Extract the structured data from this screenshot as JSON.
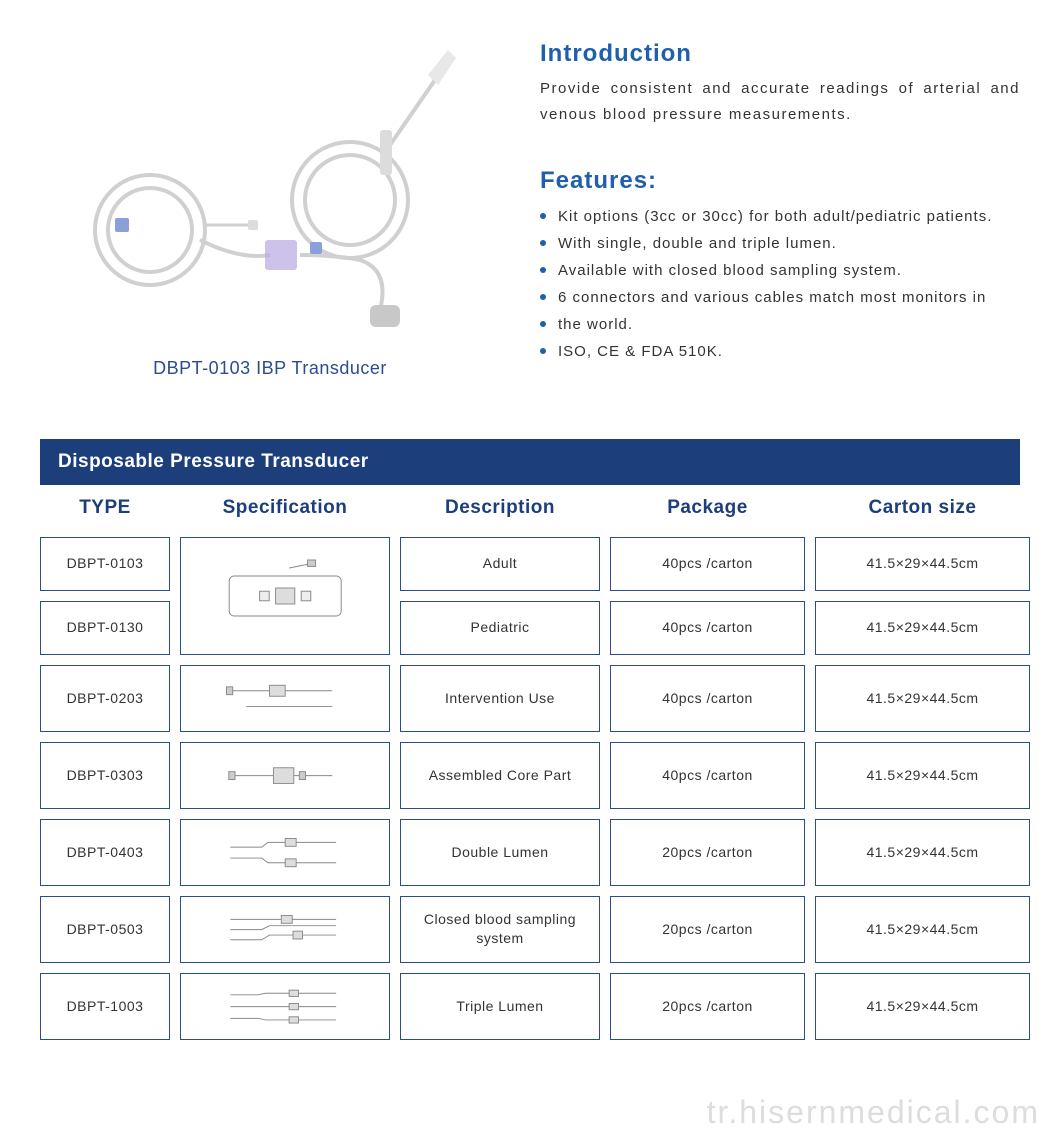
{
  "colors": {
    "brand_blue": "#1f5fab",
    "navy": "#1c3e7a",
    "border": "#2a4d8f",
    "text": "#333333",
    "bullet": "#1f5fab",
    "white": "#ffffff",
    "watermark": "#dddddd",
    "svg_stroke": "#888888"
  },
  "product": {
    "caption": "DBPT-0103 IBP Transducer"
  },
  "intro": {
    "heading": "Introduction",
    "text": "Provide consistent and accurate readings of arterial and venous blood pressure measurements."
  },
  "features": {
    "heading": "Features:",
    "items": [
      "Kit options (3cc or 30cc) for both adult/pediatric patients.",
      "With single, double and triple lumen.",
      "Available with closed blood sampling system.",
      "6 connectors and various cables match most monitors in",
      "the world.",
      "ISO, CE & FDA 510K."
    ]
  },
  "table": {
    "title": "Disposable Pressure Transducer",
    "headers": [
      "TYPE",
      "Specification",
      "Description",
      "Package",
      "Carton  size"
    ],
    "rows": [
      {
        "type": "DBPT-0103",
        "spec_rowspan": 2,
        "description": "Adult",
        "package": "40pcs /carton",
        "carton": "41.5×29×44.5cm"
      },
      {
        "type": "DBPT-0130",
        "description": "Pediatric",
        "package": "40pcs /carton",
        "carton": "41.5×29×44.5cm"
      },
      {
        "type": "DBPT-0203",
        "description": "Intervention Use",
        "package": "40pcs /carton",
        "carton": "41.5×29×44.5cm"
      },
      {
        "type": "DBPT-0303",
        "description": "Assembled Core Part",
        "package": "40pcs /carton",
        "carton": "41.5×29×44.5cm"
      },
      {
        "type": "DBPT-0403",
        "description": "Double Lumen",
        "package": "20pcs /carton",
        "carton": "41.5×29×44.5cm"
      },
      {
        "type": "DBPT-0503",
        "description": "Closed blood sampling system",
        "package": "20pcs /carton",
        "carton": "41.5×29×44.5cm"
      },
      {
        "type": "DBPT-1003",
        "description": "Triple Lumen",
        "package": "20pcs /carton",
        "carton": "41.5×29×44.5cm"
      }
    ]
  },
  "watermark": "tr.hisernmedical.com"
}
